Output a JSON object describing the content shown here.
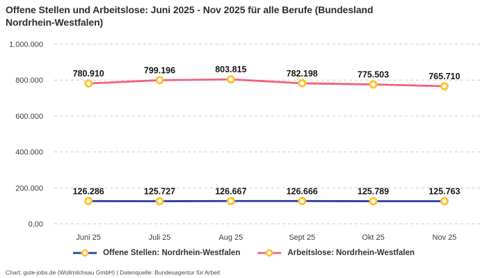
{
  "title": {
    "line1": "Offene Stellen und Arbeitslose: Juni 2025 - Nov 2025 für alle Berufe (Bundesland",
    "line2": "Nordrhein-Westfalen)"
  },
  "footer": {
    "text": "Chart: gute-jobs.de (Wollmilchsau GmbH) | Datenquelle: Bundesagentur für Arbeit"
  },
  "legend": [
    {
      "label": "Offene Stellen: Nordrhein-Westfalen",
      "color": "#243e9b"
    },
    {
      "label": "Arbeitslose: Nordrhein-Westfalen",
      "color": "#f2607a"
    }
  ],
  "chart_data": {
    "type": "line",
    "title": "Offene Stellen und Arbeitslose: Juni 2025 - Nov 2025 für alle Berufe (Bundesland Nordrhein-Westfalen)",
    "categories": [
      "Juni 25",
      "Juli 25",
      "Aug 25",
      "Sept 25",
      "Okt 25",
      "Nov 25"
    ],
    "series": [
      {
        "name": "Offene Stellen: Nordrhein-Westfalen",
        "color": "#243e9b",
        "values": [
          126286,
          125727,
          126667,
          126666,
          125789,
          125763
        ],
        "labels": [
          "126.286",
          "125.727",
          "126.667",
          "126.666",
          "125.789",
          "125.763"
        ]
      },
      {
        "name": "Arbeitslose: Nordrhein-Westfalen",
        "color": "#f2607a",
        "values": [
          780910,
          799196,
          803815,
          782198,
          775503,
          765710
        ],
        "labels": [
          "780.910",
          "799.196",
          "803.815",
          "782.198",
          "775.503",
          "765.710"
        ]
      }
    ],
    "y_ticks": [
      {
        "value": 1000000,
        "label": "1.000.000"
      },
      {
        "value": 800000,
        "label": "800.000"
      },
      {
        "value": 600000,
        "label": "600.000"
      },
      {
        "value": 400000,
        "label": "400.000"
      },
      {
        "value": 200000,
        "label": "200.000"
      },
      {
        "value": 0,
        "label": "0,00"
      }
    ],
    "ylim": [
      0,
      1000000
    ],
    "grid": "dashed-horizontal",
    "legend_position": "bottom",
    "marker": {
      "ring_color": "#fcc32e",
      "fill": "#ffffff"
    }
  }
}
